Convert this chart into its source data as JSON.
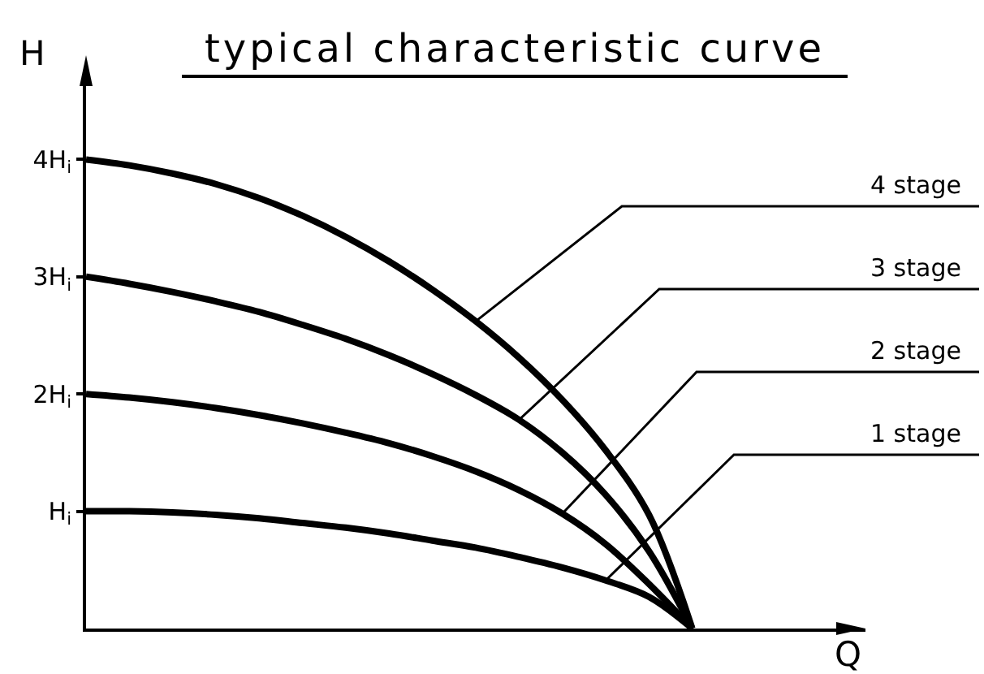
{
  "chart_data": {
    "type": "line",
    "title": "typical characteristic curve",
    "xlabel": "Q",
    "ylabel": "H",
    "categories": [
      null,
      null,
      null,
      null,
      null,
      null,
      null,
      null,
      null,
      null,
      null,
      null,
      null,
      null,
      null,
      null,
      null,
      null,
      null
    ],
    "ylim": [
      0,
      4.64
    ],
    "yticks": [
      {
        "value": 1,
        "label": "H$_{i}$"
      },
      {
        "value": 2,
        "label": "2H$_{i}$"
      },
      {
        "value": 3,
        "label": "3H$_{i}$"
      },
      {
        "value": 4,
        "label": "4H$_{i}$"
      }
    ],
    "tick_labels": "y",
    "series": [
      {
        "name": "4 stage",
        "color": "#000000",
        "values": [
          4,
          3.95,
          3.88,
          3.79,
          3.67,
          3.52,
          3.34,
          3.13,
          2.89,
          2.62,
          2.31,
          1.95,
          1.52,
          0.97,
          0,
          null,
          null,
          null,
          null
        ]
      },
      {
        "name": "3 stage",
        "color": "#000000",
        "values": [
          3,
          2.94,
          2.87,
          2.79,
          2.7,
          2.59,
          2.47,
          2.33,
          2.17,
          1.99,
          1.78,
          1.5,
          1.14,
          0.66,
          0,
          null,
          null,
          null,
          null
        ]
      },
      {
        "name": "2 stage",
        "color": "#000000",
        "values": [
          2,
          1.97,
          1.93,
          1.88,
          1.82,
          1.75,
          1.67,
          1.58,
          1.47,
          1.34,
          1.18,
          0.98,
          0.72,
          0.38,
          0,
          null,
          null,
          null,
          null
        ]
      },
      {
        "name": "1 stage",
        "color": "#000000",
        "values": [
          1,
          1.0,
          0.99,
          0.97,
          0.94,
          0.9,
          0.86,
          0.81,
          0.75,
          0.69,
          0.61,
          0.52,
          0.41,
          0.27,
          0,
          null,
          null,
          null,
          null
        ]
      }
    ]
  }
}
